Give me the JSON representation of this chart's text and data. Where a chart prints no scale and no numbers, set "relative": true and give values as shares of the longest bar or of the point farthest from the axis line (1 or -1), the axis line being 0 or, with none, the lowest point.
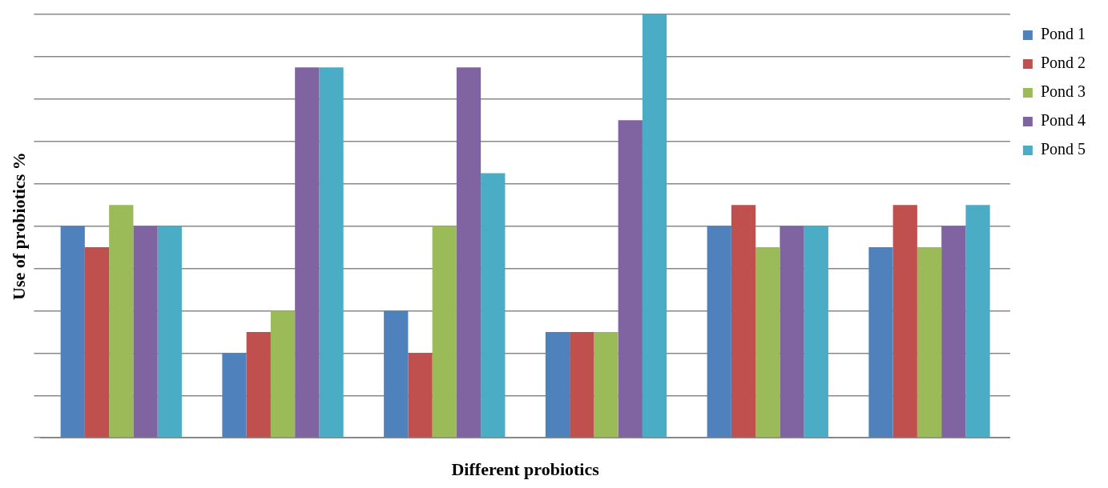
{
  "chart_data": {
    "type": "bar",
    "relative": true,
    "xlabel": "Different probiotics",
    "ylabel": "Use of probiotics %",
    "categories": [
      null,
      null,
      null,
      null,
      null,
      null
    ],
    "series": [
      {
        "name": "Pond 1",
        "color": "#4f81bd",
        "values": [
          0.5,
          0.2,
          0.3,
          0.25,
          0.5,
          0.45
        ]
      },
      {
        "name": "Pond 2",
        "color": "#c0504d",
        "values": [
          0.45,
          0.25,
          0.2,
          0.25,
          0.55,
          0.55
        ]
      },
      {
        "name": "Pond 3",
        "color": "#9bbb59",
        "values": [
          0.55,
          0.3,
          0.5,
          0.25,
          0.45,
          0.45
        ]
      },
      {
        "name": "Pond 4",
        "color": "#8064a2",
        "values": [
          0.5,
          0.875,
          0.875,
          0.75,
          0.5,
          0.5
        ]
      },
      {
        "name": "Pond 5",
        "color": "#4bacc6",
        "values": [
          0.5,
          0.875,
          0.625,
          1,
          0.5,
          0.55
        ]
      }
    ],
    "grid": "y",
    "legend": "top right"
  }
}
